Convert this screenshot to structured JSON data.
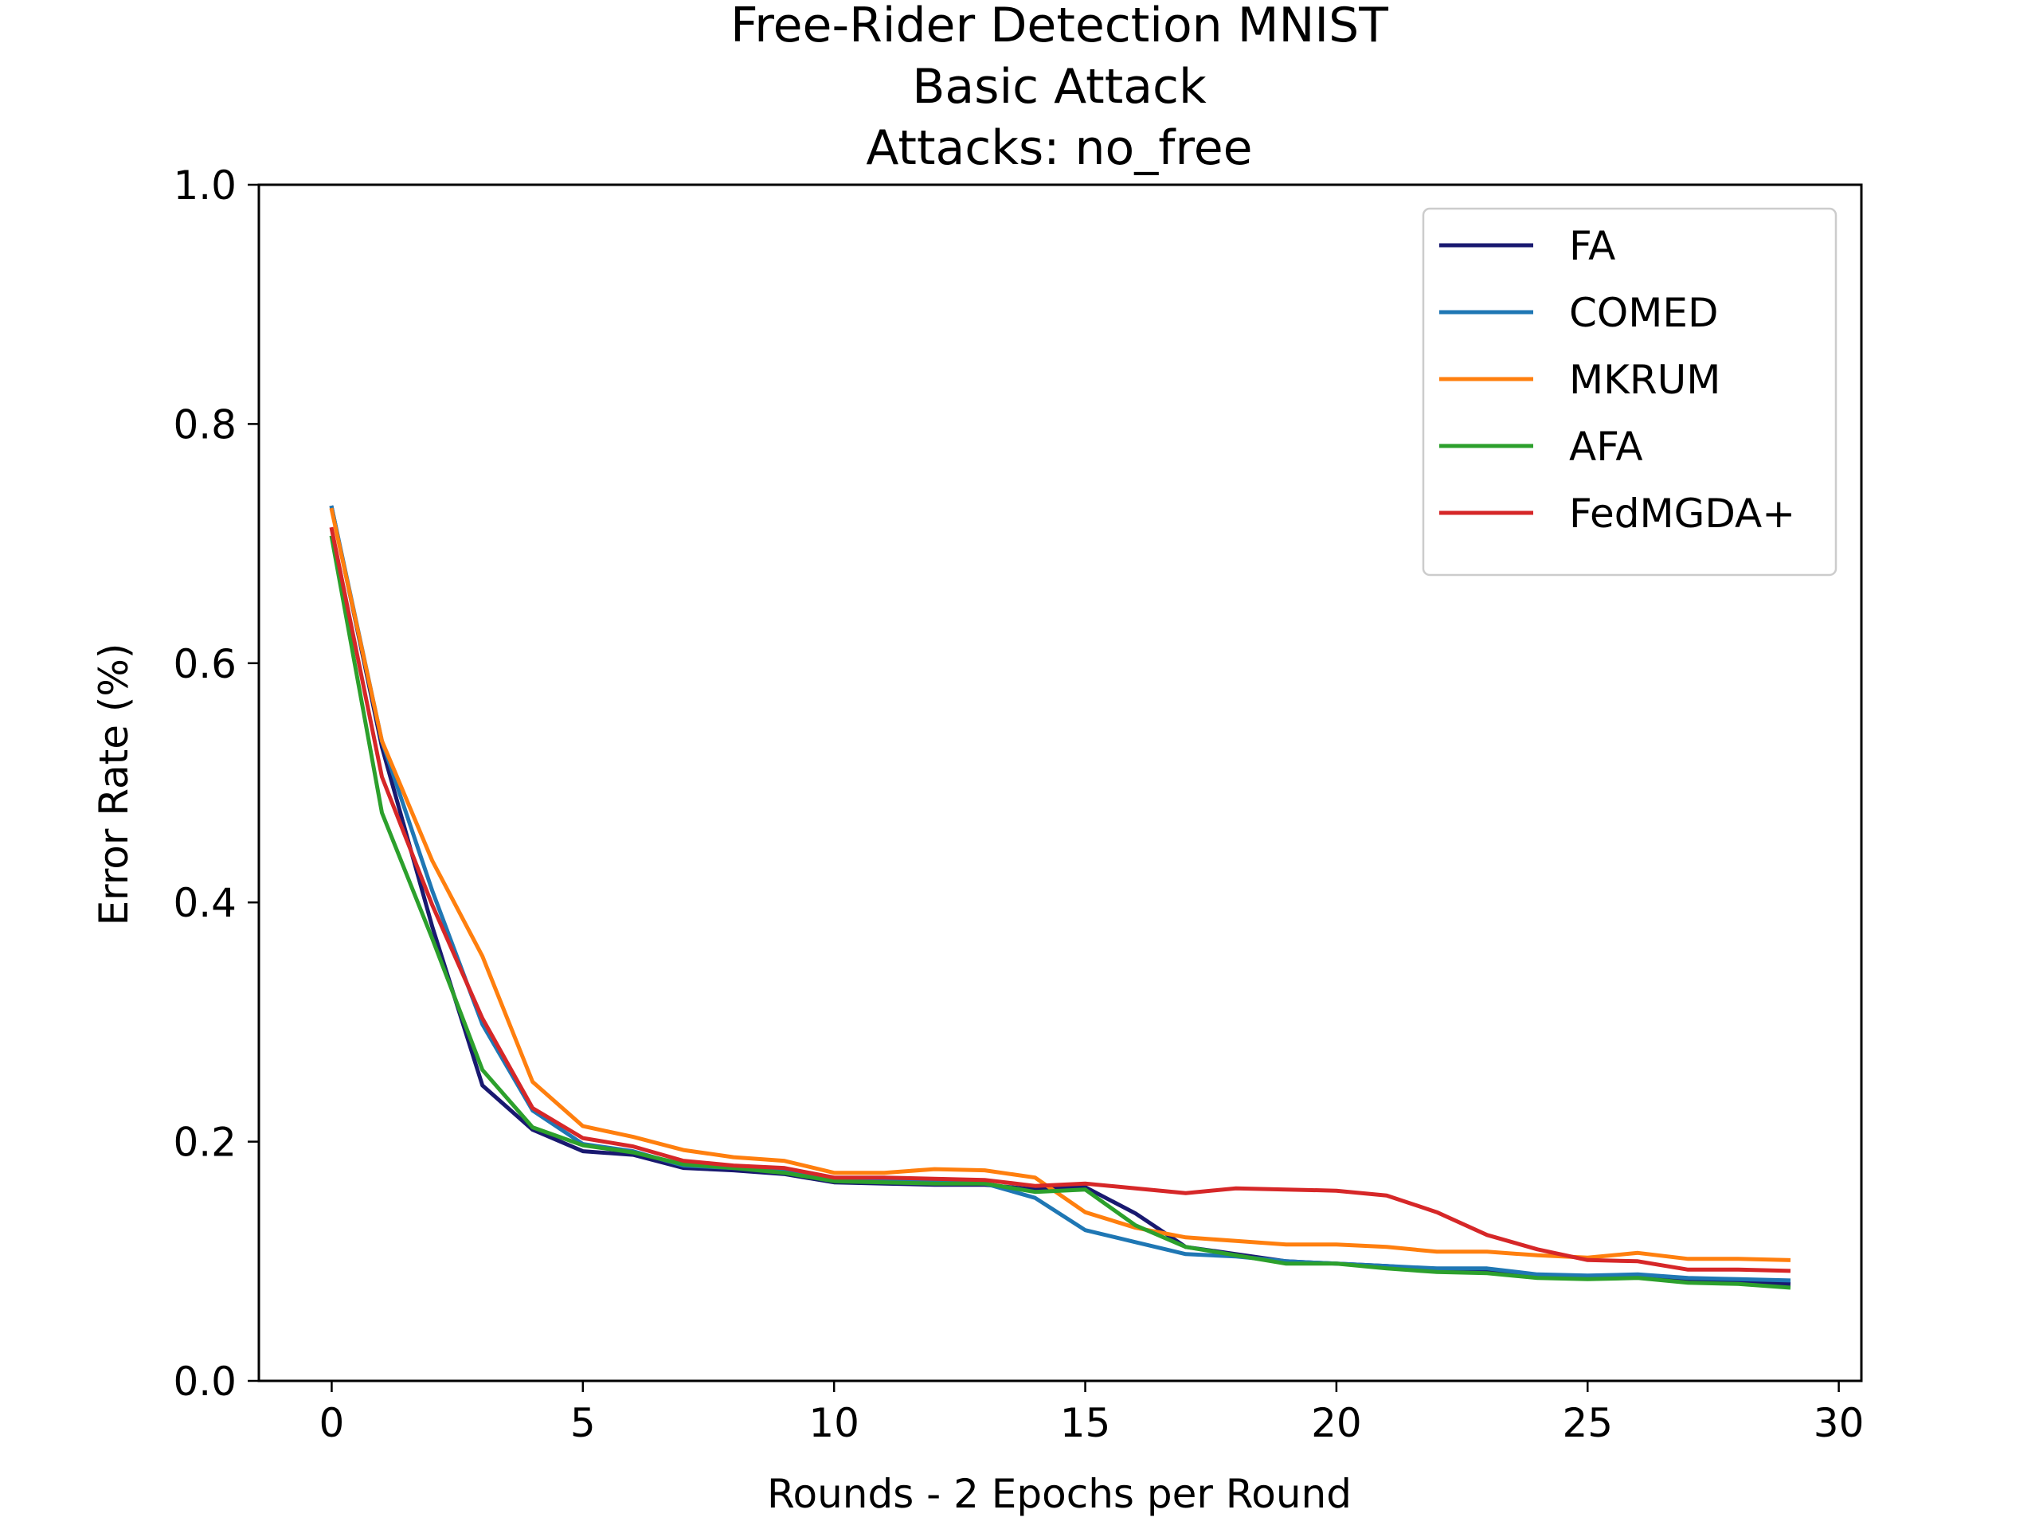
{
  "chart_data": {
    "type": "line",
    "title_lines": [
      "Free-Rider Detection MNIST",
      "Basic Attack",
      "Attacks: no_free"
    ],
    "xlabel": "Rounds - 2 Epochs per Round",
    "ylabel": "Error Rate (%)",
    "xlim": [
      -1.45,
      30.45
    ],
    "ylim": [
      0.0,
      1.0
    ],
    "xticks": [
      0,
      5,
      10,
      15,
      20,
      25,
      30
    ],
    "xtick_labels": [
      "0",
      "5",
      "10",
      "15",
      "20",
      "25",
      "30"
    ],
    "yticks": [
      0.0,
      0.2,
      0.4,
      0.6,
      0.8,
      1.0
    ],
    "ytick_labels": [
      "0.0",
      "0.2",
      "0.4",
      "0.6",
      "0.8",
      "1.0"
    ],
    "grid": false,
    "legend_position": "upper right",
    "x": [
      0,
      1,
      2,
      3,
      4,
      5,
      6,
      7,
      8,
      9,
      10,
      11,
      12,
      13,
      14,
      15,
      16,
      17,
      18,
      19,
      20,
      21,
      22,
      23,
      24,
      25,
      26,
      27,
      28,
      29
    ],
    "series": [
      {
        "name": "FA",
        "color": "#191970",
        "values": [
          0.73,
          0.53,
          0.38,
          0.247,
          0.21,
          0.192,
          0.189,
          0.178,
          0.176,
          0.173,
          0.166,
          0.165,
          0.164,
          0.164,
          0.16,
          0.162,
          0.14,
          0.112,
          0.106,
          0.1,
          0.098,
          0.096,
          0.093,
          0.093,
          0.088,
          0.087,
          0.088,
          0.084,
          0.083,
          0.081
        ]
      },
      {
        "name": "COMED",
        "color": "#1f77b4",
        "values": [
          0.73,
          0.535,
          0.41,
          0.298,
          0.226,
          0.198,
          0.192,
          0.18,
          0.178,
          0.176,
          0.168,
          0.167,
          0.166,
          0.165,
          0.153,
          0.126,
          0.116,
          0.106,
          0.104,
          0.1,
          0.098,
          0.096,
          0.094,
          0.094,
          0.089,
          0.088,
          0.089,
          0.086,
          0.085,
          0.084
        ]
      },
      {
        "name": "MKRUM",
        "color": "#ff7f0e",
        "values": [
          0.728,
          0.535,
          0.435,
          0.355,
          0.25,
          0.213,
          0.204,
          0.193,
          0.187,
          0.184,
          0.174,
          0.174,
          0.177,
          0.176,
          0.17,
          0.141,
          0.128,
          0.12,
          0.117,
          0.114,
          0.114,
          0.112,
          0.108,
          0.108,
          0.105,
          0.103,
          0.107,
          0.102,
          0.102,
          0.101
        ]
      },
      {
        "name": "AFA",
        "color": "#2ca02c",
        "values": [
          0.705,
          0.475,
          0.37,
          0.26,
          0.212,
          0.197,
          0.191,
          0.181,
          0.178,
          0.174,
          0.167,
          0.166,
          0.165,
          0.165,
          0.158,
          0.16,
          0.13,
          0.112,
          0.105,
          0.098,
          0.098,
          0.094,
          0.091,
          0.09,
          0.086,
          0.085,
          0.086,
          0.082,
          0.081,
          0.078
        ]
      },
      {
        "name": "FedMGDA+",
        "color": "#d62728",
        "values": [
          0.712,
          0.505,
          0.398,
          0.303,
          0.228,
          0.203,
          0.196,
          0.184,
          0.18,
          0.178,
          0.17,
          0.17,
          0.169,
          0.168,
          0.163,
          0.165,
          0.161,
          0.157,
          0.161,
          0.16,
          0.159,
          0.155,
          0.141,
          0.122,
          0.11,
          0.101,
          0.1,
          0.093,
          0.093,
          0.092
        ]
      }
    ]
  }
}
